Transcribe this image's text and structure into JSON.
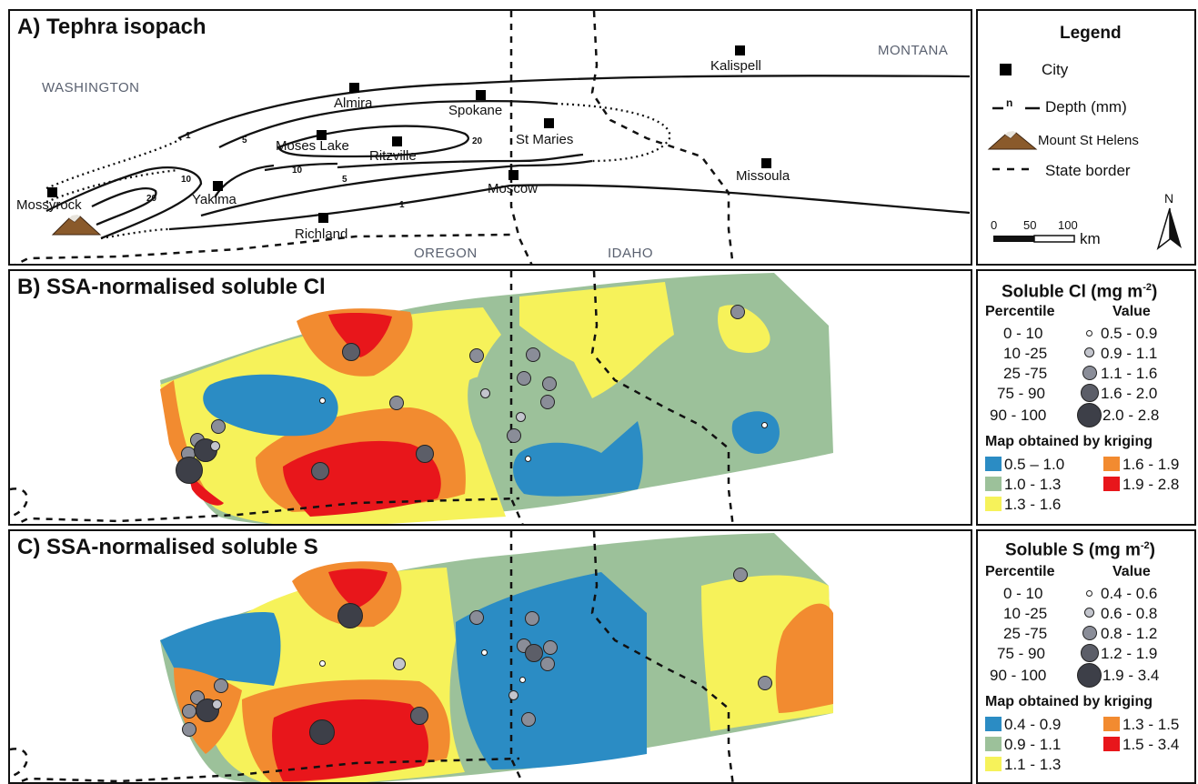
{
  "panelA": {
    "title": "A) Tephra isopach",
    "states": [
      "WASHINGTON",
      "MONTANA",
      "OREGON",
      "IDAHO"
    ],
    "cities": [
      "Kalispell",
      "Almira",
      "Spokane",
      "St Maries",
      "Moses Lake",
      "Ritzville",
      "Missoula",
      "Mossyrock",
      "Yakima",
      "Moscow",
      "Richland"
    ],
    "isopach_labels": [
      "1",
      "5",
      "10",
      "20"
    ]
  },
  "legendA": {
    "title": "Legend",
    "city": "City",
    "depth_marker": "n",
    "depth": "Depth (mm)",
    "volcano": "Mount St Helens",
    "border": "State border",
    "scale_ticks": [
      "0",
      "50",
      "100"
    ],
    "scale_unit": "km",
    "north": "N"
  },
  "panelB": {
    "title": "B) SSA-normalised soluble Cl"
  },
  "legendB": {
    "title": "Soluble Cl (mg m",
    "title_sup": "-2",
    "title_end": ")",
    "percentile_hdr": "Percentile",
    "value_hdr": "Value",
    "rows": [
      {
        "pct": "0 - 10",
        "val": "0.5 - 0.9"
      },
      {
        "pct": "10 -25",
        "val": "0.9 - 1.1"
      },
      {
        "pct": "25 -75",
        "val": "1.1 - 1.6"
      },
      {
        "pct": "75 - 90",
        "val": "1.6 - 2.0"
      },
      {
        "pct": "90 - 100",
        "val": "2.0 - 2.8"
      }
    ],
    "kriging_hdr": "Map obtained by kriging",
    "classes": [
      {
        "label": "0.5 – 1.0",
        "color": "#2b8cc4"
      },
      {
        "label": "1.6 - 1.9",
        "color": "#f28b30"
      },
      {
        "label": "1.0 - 1.3",
        "color": "#9cc19a"
      },
      {
        "label": "1.9 - 2.8",
        "color": "#e8161b"
      },
      {
        "label": "1.3 - 1.6",
        "color": "#f6f25a"
      }
    ]
  },
  "panelC": {
    "title": "C) SSA-normalised soluble S"
  },
  "legendC": {
    "title": "Soluble S (mg m",
    "title_sup": "-2",
    "title_end": ")",
    "percentile_hdr": "Percentile",
    "value_hdr": "Value",
    "rows": [
      {
        "pct": "0 - 10",
        "val": "0.4 - 0.6"
      },
      {
        "pct": "10 -25",
        "val": "0.6 - 0.8"
      },
      {
        "pct": "25 -75",
        "val": "0.8 - 1.2"
      },
      {
        "pct": "75 - 90",
        "val": "1.2 - 1.9"
      },
      {
        "pct": "90 - 100",
        "val": "1.9 - 3.4"
      }
    ],
    "kriging_hdr": "Map obtained by kriging",
    "classes": [
      {
        "label": "0.4 - 0.9",
        "color": "#2b8cc4"
      },
      {
        "label": "1.3 - 1.5",
        "color": "#f28b30"
      },
      {
        "label": "0.9 - 1.1",
        "color": "#9cc19a"
      },
      {
        "label": "1.5 - 3.4",
        "color": "#e8161b"
      },
      {
        "label": "1.1 - 1.3",
        "color": "#f6f25a"
      }
    ]
  }
}
